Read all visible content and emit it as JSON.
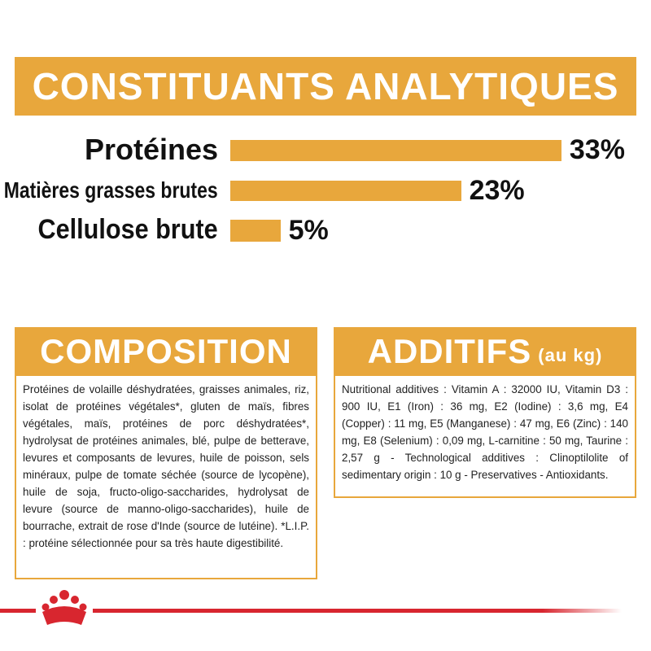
{
  "analytical": {
    "title": "CONSTITUANTS ANALYTIQUES",
    "items": [
      {
        "label": "Protéines",
        "value": 33,
        "value_label": "33%"
      },
      {
        "label": "Matières grasses brutes",
        "value": 23,
        "value_label": "23%"
      },
      {
        "label": "Cellulose brute",
        "value": 5,
        "value_label": "5%"
      }
    ]
  },
  "composition": {
    "title": "COMPOSITION",
    "text": "Protéines de volaille déshydratées, graisses animales, riz, isolat de protéines végétales*, gluten de maïs, fibres végétales, maïs, protéines de porc déshydratées*, hydrolysat de protéines animales, blé, pulpe de betterave, levures et composants de levures, huile de poisson, sels minéraux, pulpe de tomate séchée (source de lycopène), huile de soja, fructo-oligo-saccharides, hydrolysat de levure (source de manno-oligo-saccharides), huile de bourrache, extrait de rose d'Inde (source de lutéine). *L.I.P. : protéine sélectionnée pour sa très haute digestibilité."
  },
  "additifs": {
    "title": "ADDITIFS",
    "title_suffix": "(au kg)",
    "text": "Nutritional additives : Vitamin A : 32000 IU, Vitamin D3 : 900 IU, E1 (Iron) : 36 mg, E2 (Iodine) : 3,6 mg, E4 (Copper) : 11 mg, E5 (Manganese) : 47 mg, E6 (Zinc) : 140 mg, E8 (Selenium) : 0,09 mg, L-carnitine : 50 mg, Taurine : 2,57 g - Technological additives : Clinoptilolite of sedimentary origin : 10 g - Preservatives - Antioxidants."
  }
}
